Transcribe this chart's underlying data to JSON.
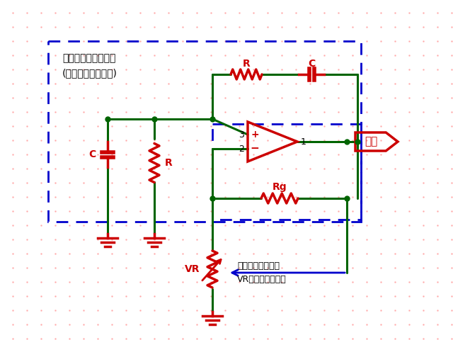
{
  "bg_color": "#ffffff",
  "dot_color": "#ffaaaa",
  "wire_color": "#006400",
  "component_color": "#cc0000",
  "dashed_box_color": "#0000cc",
  "bandpass_label1": "バンドパスフィルタ",
  "bandpass_label2": "(発振周波数を決定)",
  "output_label": "出力",
  "vr_label": "VR",
  "rg_label": "Rg",
  "r_top_label": "R",
  "c_top_label": "C",
  "r_left_label": "R",
  "c_left_label": "C",
  "arrow_label": "出力振幅に応じて\nVRをコントロール",
  "pin3_label": "3",
  "pin2_label": "2",
  "pin1_label": "1"
}
